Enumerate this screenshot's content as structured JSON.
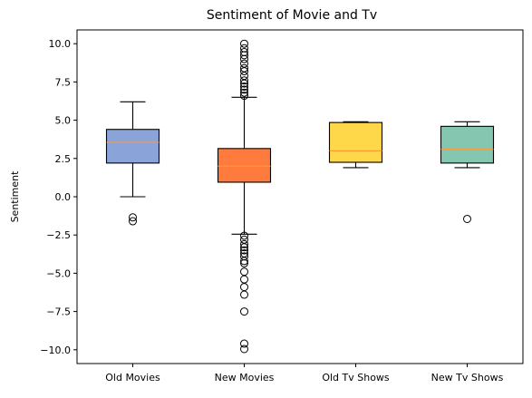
{
  "chart_data": {
    "type": "box",
    "title": "Sentiment of Movie and Tv",
    "xlabel": "",
    "ylabel": "Sentiment",
    "ylim": [
      -10.9,
      10.9
    ],
    "yticks": [
      -10.0,
      -7.5,
      -5.0,
      -2.5,
      0.0,
      2.5,
      5.0,
      7.5,
      10.0
    ],
    "ytick_labels": [
      "−10.0",
      "−7.5",
      "−5.0",
      "−2.5",
      "0.0",
      "2.5",
      "5.0",
      "7.5",
      "10.0"
    ],
    "grid": false,
    "categories": [
      "Old Movies",
      "New Movies",
      "Old Tv Shows",
      "New Tv Shows"
    ],
    "boxes": [
      {
        "category": "Old Movies",
        "color": "#8aa4da",
        "whisker_low": 0.0,
        "q1": 2.2,
        "median": 3.55,
        "q3": 4.4,
        "whisker_high": 6.2,
        "outliers": [
          -1.35,
          -1.6
        ]
      },
      {
        "category": "New Movies",
        "color": "#ff7a3d",
        "whisker_low": -2.45,
        "q1": 0.95,
        "median": 2.0,
        "q3": 3.15,
        "whisker_high": 6.5,
        "outliers": [
          10.0,
          9.7,
          9.45,
          9.25,
          9.0,
          8.7,
          8.4,
          8.2,
          7.9,
          7.6,
          7.4,
          7.2,
          7.0,
          6.8,
          6.6,
          -2.55,
          -2.8,
          -3.1,
          -3.3,
          -3.5,
          -3.7,
          -3.9,
          -4.2,
          -4.35,
          -4.9,
          -5.4,
          -5.9,
          -6.4,
          -7.5,
          -9.6,
          -9.95
        ]
      },
      {
        "category": "Old Tv Shows",
        "color": "#ffd84a",
        "whisker_low": 1.9,
        "q1": 2.25,
        "median": 3.0,
        "q3": 4.85,
        "whisker_high": 4.9,
        "outliers": []
      },
      {
        "category": "New Tv Shows",
        "color": "#85c6b1",
        "whisker_low": 1.9,
        "q1": 2.2,
        "median": 3.1,
        "q3": 4.6,
        "whisker_high": 4.9,
        "outliers": [
          -1.45
        ]
      }
    ],
    "median_color": "#ff9933"
  }
}
